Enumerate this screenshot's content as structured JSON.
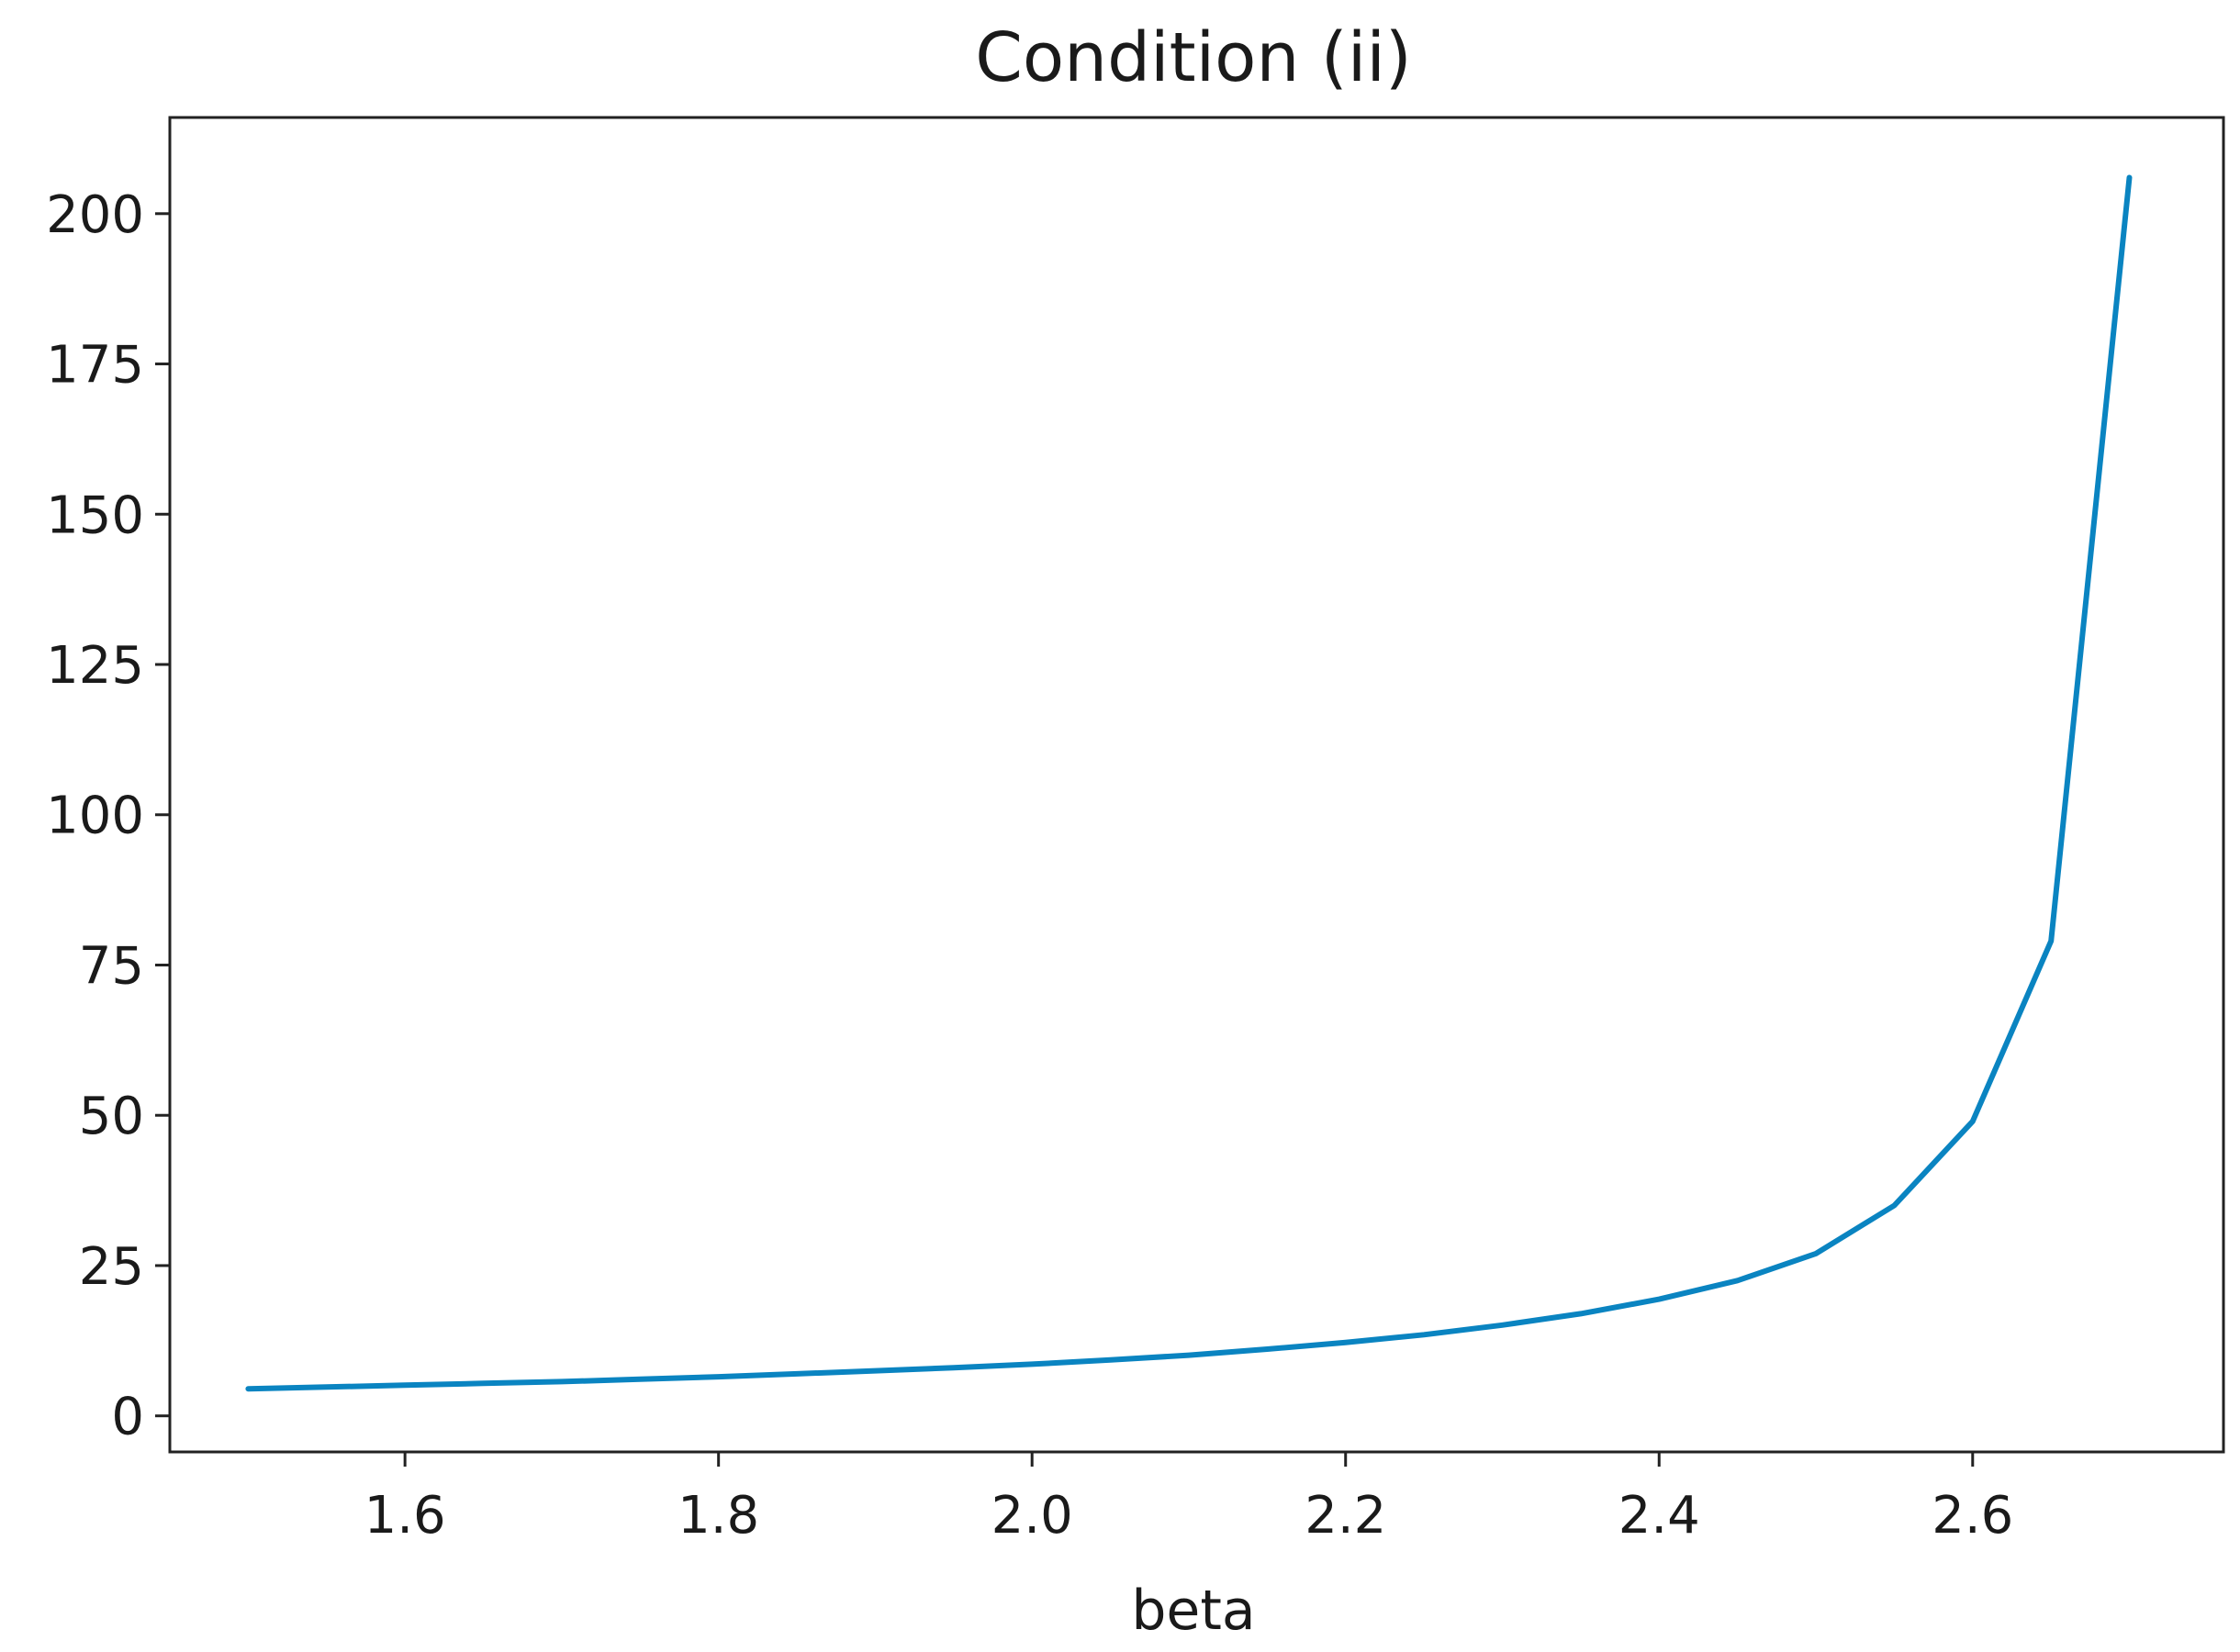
{
  "chart_data": {
    "type": "line",
    "title": "Condition (ii)",
    "xlabel": "beta",
    "ylabel": "",
    "xlim": [
      1.45,
      2.76
    ],
    "ylim": [
      -6,
      216
    ],
    "x_ticks": [
      1.6,
      1.8,
      2.0,
      2.2,
      2.4,
      2.6
    ],
    "x_tick_labels": [
      "1.6",
      "1.8",
      "2.0",
      "2.2",
      "2.4",
      "2.6"
    ],
    "y_ticks": [
      0,
      25,
      50,
      75,
      100,
      125,
      150,
      175,
      200
    ],
    "y_tick_labels": [
      "0",
      "25",
      "50",
      "75",
      "100",
      "125",
      "150",
      "175",
      "200"
    ],
    "grid": false,
    "series": [
      {
        "color": "#0a84c1",
        "x": [
          1.5,
          1.55,
          1.6,
          1.65,
          1.7,
          1.75,
          1.8,
          1.85,
          1.9,
          1.95,
          2.0,
          2.05,
          2.1,
          2.15,
          2.2,
          2.25,
          2.3,
          2.35,
          2.4,
          2.45,
          2.5,
          2.55,
          2.6,
          2.65,
          2.7
        ],
        "y": [
          4.5,
          4.8,
          5.1,
          5.4,
          5.7,
          6.1,
          6.5,
          7.0,
          7.5,
          8.0,
          8.6,
          9.3,
          10.1,
          11.1,
          12.2,
          13.5,
          15.1,
          17.0,
          19.4,
          22.5,
          27.0,
          35.0,
          49.0,
          79.0,
          206.0
        ]
      }
    ]
  }
}
